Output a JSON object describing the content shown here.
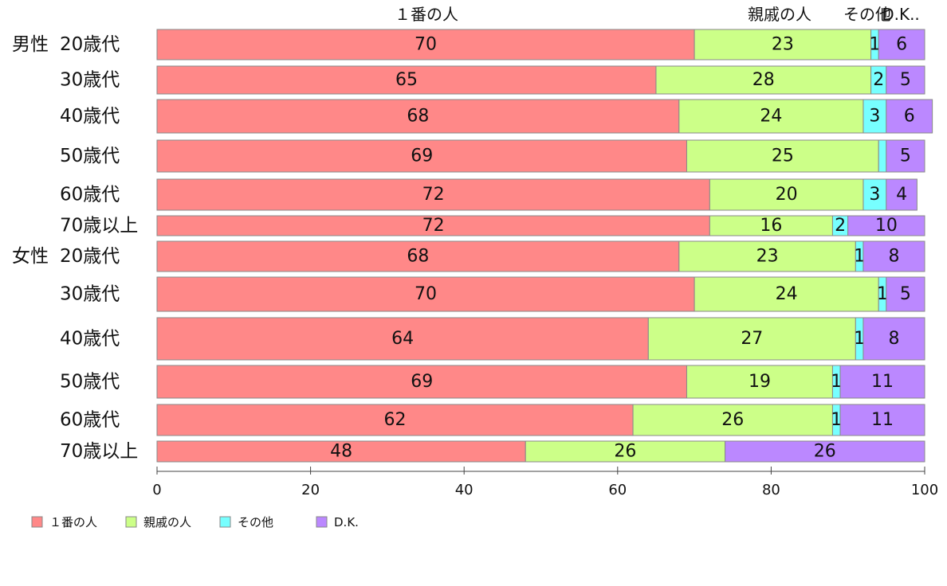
{
  "chart_data": {
    "type": "bar",
    "orientation": "horizontal",
    "stacked": true,
    "groups": [
      "男性",
      "女性"
    ],
    "categories": [
      "20歳代",
      "30歳代",
      "40歳代",
      "50歳代",
      "60歳代",
      "70歳以上",
      "20歳代",
      "30歳代",
      "40歳代",
      "50歳代",
      "60歳代",
      "70歳以上"
    ],
    "category_group": [
      "男性",
      null,
      null,
      null,
      null,
      null,
      "女性",
      null,
      null,
      null,
      null,
      null
    ],
    "series": [
      {
        "name": "１番の人",
        "color": "#ff8888",
        "values": [
          70,
          65,
          68,
          69,
          72,
          72,
          68,
          70,
          64,
          69,
          62,
          48
        ]
      },
      {
        "name": "親戚の人",
        "color": "#ccff88",
        "values": [
          23,
          28,
          24,
          25,
          20,
          16,
          23,
          24,
          27,
          19,
          26,
          26
        ]
      },
      {
        "name": "その他",
        "color": "#77ffff",
        "values": [
          1,
          2,
          3,
          1,
          3,
          2,
          1,
          1,
          1,
          1,
          1,
          0
        ]
      },
      {
        "name": "D.K.",
        "color": "#bb88ff",
        "values": [
          6,
          5,
          6,
          5,
          4,
          10,
          8,
          5,
          8,
          11,
          11,
          26
        ]
      }
    ],
    "value_labels": [
      [
        "70",
        "65",
        "68",
        "69",
        "72",
        "72",
        "68",
        "70",
        "64",
        "69",
        "62",
        "48"
      ],
      [
        "23",
        "28",
        "24",
        "25",
        "20",
        "16",
        "23",
        "24",
        "27",
        "19",
        "26",
        "26"
      ],
      [
        "1",
        "2",
        "3",
        "",
        "3",
        "2",
        "1",
        "1",
        "1",
        "1",
        "1",
        ""
      ],
      [
        "6",
        "5",
        "6",
        "5",
        "4",
        "10",
        "8",
        "5",
        "8",
        "11",
        "11",
        "26"
      ]
    ],
    "column_headers": [
      "１番の人",
      "親戚の人",
      "その他",
      "D.K.."
    ],
    "xlim": [
      0,
      100
    ],
    "xticks": [
      0,
      20,
      40,
      60,
      80,
      100
    ],
    "legend_position": "bottom-left",
    "grid": false
  }
}
